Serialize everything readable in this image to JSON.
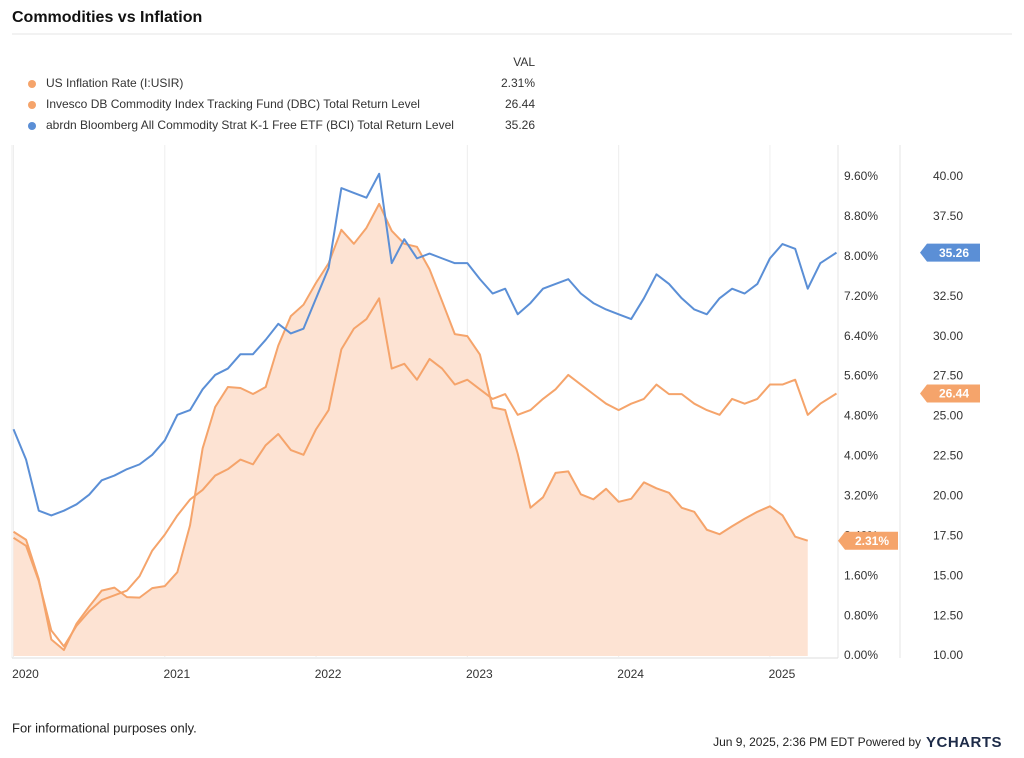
{
  "chart_data": {
    "type": "line",
    "title": "Commodities vs Inflation",
    "legend_header": "VAL",
    "x": [
      2020.0,
      2020.083,
      2020.167,
      2020.25,
      2020.333,
      2020.417,
      2020.5,
      2020.583,
      2020.667,
      2020.75,
      2020.833,
      2020.917,
      2021.0,
      2021.083,
      2021.167,
      2021.25,
      2021.333,
      2021.417,
      2021.5,
      2021.583,
      2021.667,
      2021.75,
      2021.833,
      2021.917,
      2022.0,
      2022.083,
      2022.167,
      2022.25,
      2022.333,
      2022.417,
      2022.5,
      2022.583,
      2022.667,
      2022.75,
      2022.833,
      2022.917,
      2023.0,
      2023.083,
      2023.167,
      2023.25,
      2023.333,
      2023.417,
      2023.5,
      2023.583,
      2023.667,
      2023.75,
      2023.833,
      2023.917,
      2024.0,
      2024.083,
      2024.167,
      2024.25,
      2024.333,
      2024.417,
      2024.5,
      2024.583,
      2024.667,
      2024.75,
      2024.833,
      2024.917,
      2025.0,
      2025.083,
      2025.167,
      2025.25,
      2025.333,
      2025.44
    ],
    "xlim": [
      2019.99,
      2025.45
    ],
    "xticks": [
      2020,
      2021,
      2022,
      2023,
      2024,
      2025
    ],
    "ylim": [
      0,
      10.24
    ],
    "yticks": [
      {
        "value": 0,
        "label": "0.00%"
      },
      {
        "value": 0.8,
        "label": "0.80%"
      },
      {
        "value": 1.6,
        "label": "1.60%"
      },
      {
        "value": 2.4,
        "label": "2.40%"
      },
      {
        "value": 3.2,
        "label": "3.20%"
      },
      {
        "value": 4.0,
        "label": "4.00%"
      },
      {
        "value": 4.8,
        "label": "4.80%"
      },
      {
        "value": 5.6,
        "label": "5.60%"
      },
      {
        "value": 6.4,
        "label": "6.40%"
      },
      {
        "value": 7.2,
        "label": "7.20%"
      },
      {
        "value": 8.0,
        "label": "8.00%"
      },
      {
        "value": 8.8,
        "label": "8.80%"
      },
      {
        "value": 9.6,
        "label": "9.60%"
      }
    ],
    "y2lim": [
      10,
      42
    ],
    "y2ticks": [
      {
        "value": 10,
        "label": "10.00"
      },
      {
        "value": 12.5,
        "label": "12.50"
      },
      {
        "value": 15,
        "label": "15.00"
      },
      {
        "value": 17.5,
        "label": "17.50"
      },
      {
        "value": 20,
        "label": "20.00"
      },
      {
        "value": 22.5,
        "label": "22.50"
      },
      {
        "value": 25,
        "label": "25.00"
      },
      {
        "value": 27.5,
        "label": "27.50"
      },
      {
        "value": 30,
        "label": "30.00"
      },
      {
        "value": 32.5,
        "label": "32.50"
      },
      {
        "value": 35,
        "label": "35.00"
      },
      {
        "value": 37.5,
        "label": "37.50"
      },
      {
        "value": 40,
        "label": "40.00"
      }
    ],
    "series": [
      {
        "name": "US Inflation Rate (I:USIR)",
        "color": "#f5a46b",
        "fill": "#fde3d3",
        "axis": "y",
        "last_label": "2.31%",
        "values": [
          2.49,
          2.33,
          1.54,
          0.33,
          0.12,
          0.65,
          0.99,
          1.31,
          1.37,
          1.18,
          1.17,
          1.36,
          1.4,
          1.68,
          2.62,
          4.16,
          4.99,
          5.39,
          5.37,
          5.25,
          5.39,
          6.22,
          6.81,
          7.04,
          7.48,
          7.87,
          8.54,
          8.26,
          8.58,
          9.06,
          8.52,
          8.26,
          8.2,
          7.75,
          7.11,
          6.45,
          6.41,
          6.04,
          4.98,
          4.93,
          4.05,
          2.97,
          3.18,
          3.67,
          3.7,
          3.24,
          3.14,
          3.35,
          3.09,
          3.15,
          3.48,
          3.36,
          3.27,
          2.97,
          2.89,
          2.53,
          2.44,
          2.6,
          2.75,
          2.89,
          3.0,
          2.82,
          2.39,
          2.31,
          null,
          null
        ]
      },
      {
        "name": "Invesco DB Commodity Index Tracking Fund (DBC) Total Return Level",
        "color": "#f5a46b",
        "axis": "y2",
        "last_label": "26.44",
        "values": [
          17.4,
          16.9,
          14.7,
          11.6,
          10.6,
          11.9,
          12.8,
          13.5,
          13.8,
          14.1,
          15.0,
          16.6,
          17.6,
          18.8,
          19.8,
          20.4,
          21.3,
          21.7,
          22.3,
          22.0,
          23.2,
          23.9,
          22.9,
          22.6,
          24.2,
          25.4,
          29.2,
          30.5,
          31.1,
          32.4,
          28.0,
          28.3,
          27.3,
          28.6,
          28.0,
          27.0,
          27.3,
          26.7,
          26.1,
          26.4,
          25.1,
          25.4,
          26.1,
          26.7,
          27.6,
          27.0,
          26.4,
          25.8,
          25.4,
          25.8,
          26.1,
          27.0,
          26.4,
          26.4,
          25.8,
          25.4,
          25.1,
          26.1,
          25.8,
          26.1,
          27.0,
          27.0,
          27.3,
          25.1,
          25.8,
          26.44
        ]
      },
      {
        "name": "abrdn Bloomberg All Commodity Strat K-1 Free ETF (BCI) Total Return Level",
        "color": "#5b8fd6",
        "axis": "y2",
        "last_label": "35.26",
        "values": [
          24.2,
          22.3,
          19.1,
          18.8,
          19.1,
          19.5,
          20.1,
          21.0,
          21.3,
          21.7,
          22.0,
          22.6,
          23.5,
          25.1,
          25.4,
          26.7,
          27.6,
          28.0,
          28.9,
          28.9,
          29.8,
          30.8,
          30.2,
          30.5,
          32.4,
          34.3,
          39.3,
          39.0,
          38.7,
          40.2,
          34.6,
          36.1,
          34.9,
          35.2,
          34.9,
          34.6,
          34.6,
          33.6,
          32.7,
          33.0,
          31.4,
          32.1,
          33.0,
          33.3,
          33.6,
          32.7,
          32.1,
          31.7,
          31.4,
          31.1,
          32.4,
          33.9,
          33.3,
          32.4,
          31.7,
          31.4,
          32.4,
          33.0,
          32.7,
          33.3,
          34.9,
          35.8,
          35.5,
          33.0,
          34.6,
          35.26
        ]
      }
    ]
  },
  "footer": {
    "note": "For informational purposes only.",
    "timestamp": "Jun 9, 2025, 2:36 PM EDT Powered by",
    "brand": "YCHARTS"
  }
}
